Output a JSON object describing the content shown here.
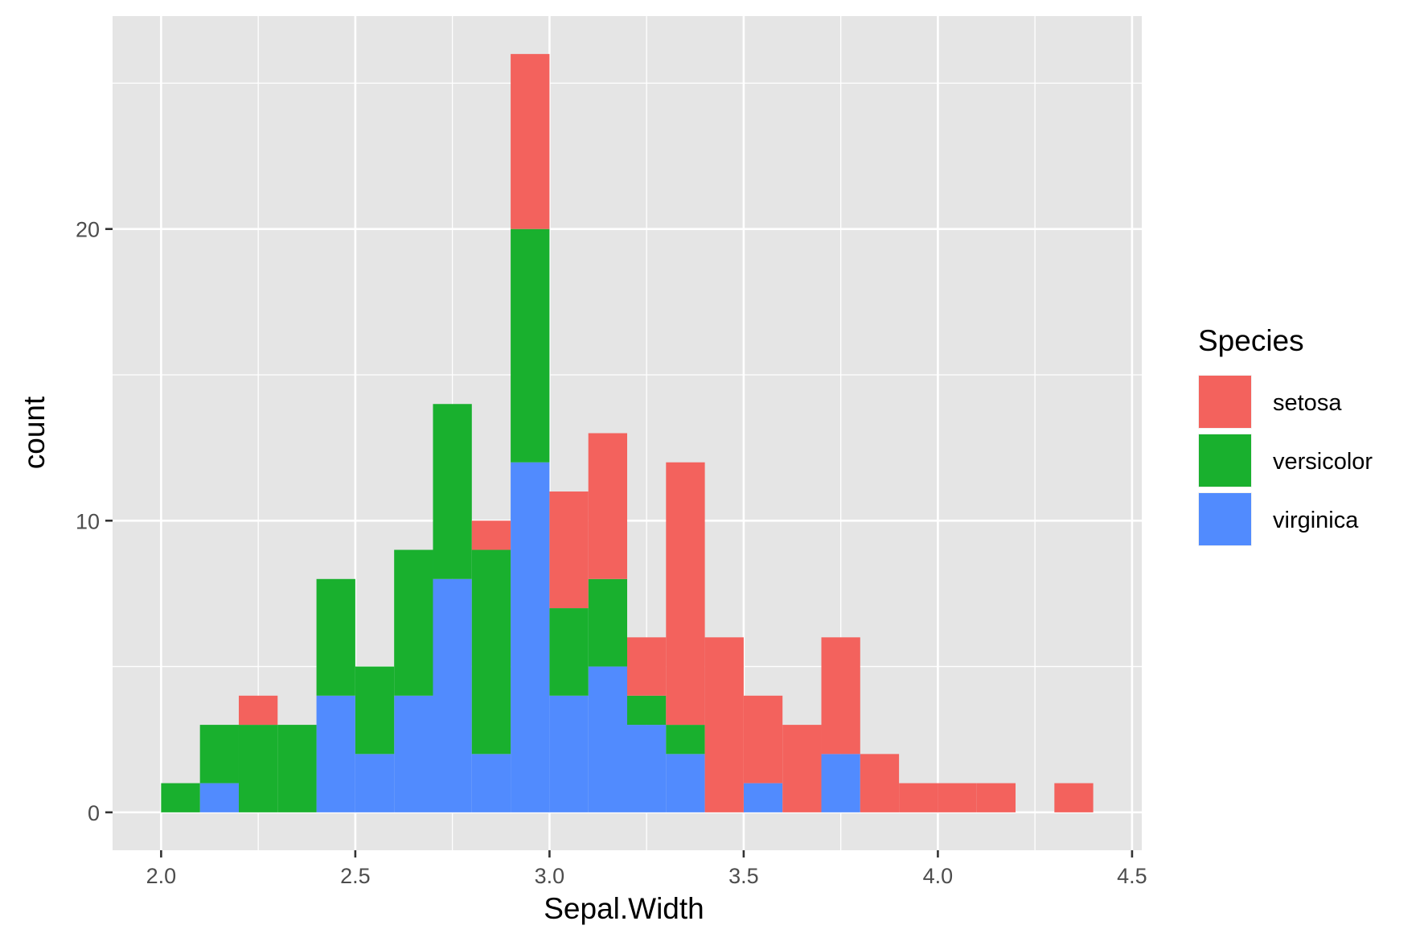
{
  "chart_data": {
    "type": "bar",
    "stacked": true,
    "xlabel": "Sepal.Width",
    "ylabel": "count",
    "xlim": [
      1.875,
      4.525
    ],
    "ylim": [
      -1.3,
      27.3
    ],
    "x_ticks": [
      2.0,
      2.5,
      3.0,
      3.5,
      4.0,
      4.5
    ],
    "x_tick_labels": [
      "2.0",
      "2.5",
      "3.0",
      "3.5",
      "4.0",
      "4.5"
    ],
    "y_ticks": [
      0,
      10,
      20
    ],
    "y_tick_labels": [
      "0",
      "10",
      "20"
    ],
    "grid": true,
    "bin_width": 0.1,
    "bins": [
      2.0,
      2.1,
      2.2,
      2.3,
      2.4,
      2.5,
      2.6,
      2.7,
      2.8,
      2.9,
      3.0,
      3.1,
      3.2,
      3.3,
      3.4,
      3.5,
      3.6,
      3.7,
      3.8,
      3.9,
      4.0,
      4.1,
      4.2,
      4.3
    ],
    "legend": {
      "title": "Species",
      "position": "right"
    },
    "series": [
      {
        "name": "virginica",
        "color": "#518bfe",
        "values": [
          0,
          1,
          0,
          0,
          4,
          2,
          4,
          8,
          2,
          12,
          4,
          5,
          3,
          2,
          0,
          1,
          0,
          2,
          0,
          0,
          0,
          0,
          0,
          0
        ]
      },
      {
        "name": "versicolor",
        "color": "#19b02e",
        "values": [
          1,
          2,
          3,
          3,
          4,
          3,
          5,
          6,
          7,
          8,
          3,
          3,
          1,
          1,
          0,
          0,
          0,
          0,
          0,
          0,
          0,
          0,
          0,
          0
        ]
      },
      {
        "name": "setosa",
        "color": "#f3625d",
        "values": [
          0,
          0,
          1,
          0,
          0,
          0,
          0,
          0,
          1,
          6,
          4,
          5,
          2,
          9,
          6,
          3,
          3,
          4,
          2,
          1,
          1,
          1,
          0,
          1
        ]
      }
    ],
    "legend_order": [
      "setosa",
      "versicolor",
      "virginica"
    ]
  }
}
